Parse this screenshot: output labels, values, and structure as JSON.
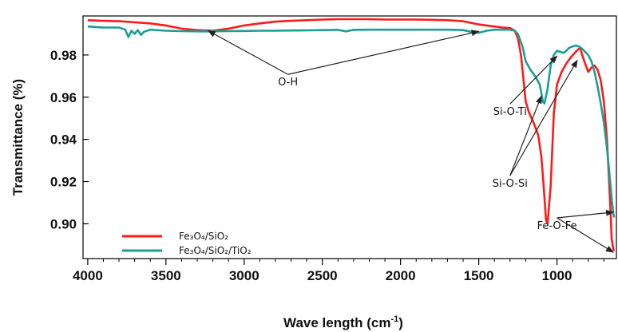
{
  "chart_data": {
    "type": "line",
    "title": "",
    "xlabel": "Wave length (cm",
    "xlabel_sup": "-1",
    "xlabel_suffix": ")",
    "ylabel": "Transmittance (%)",
    "xlim": [
      4030,
      620
    ],
    "ylim": [
      0.8835,
      0.9985
    ],
    "x_reversed": true,
    "x_ticks": [
      {
        "value": 4000,
        "label": "4000"
      },
      {
        "value": 3500,
        "label": "3500"
      },
      {
        "value": 3000,
        "label": "3000"
      },
      {
        "value": 2500,
        "label": "2500"
      },
      {
        "value": 2000,
        "label": "2000"
      },
      {
        "value": 1500,
        "label": "1500"
      },
      {
        "value": 1000,
        "label": "1000"
      }
    ],
    "y_ticks": [
      {
        "value": 0.98,
        "label": "0.98"
      },
      {
        "value": 0.96,
        "label": "0.96"
      },
      {
        "value": 0.94,
        "label": "0.94"
      },
      {
        "value": 0.92,
        "label": "0.92"
      },
      {
        "value": 0.9,
        "label": "0.90"
      }
    ],
    "grid": false,
    "legend_position": "bottom-left",
    "series": [
      {
        "name": "Fe₃O₄/SiO₂",
        "color": "#ff1a1a",
        "x": [
          4000,
          3900,
          3800,
          3700,
          3600,
          3500,
          3400,
          3300,
          3200,
          3100,
          3000,
          2900,
          2800,
          2700,
          2600,
          2500,
          2400,
          2300,
          2200,
          2100,
          2000,
          1900,
          1800,
          1700,
          1600,
          1500,
          1450,
          1400,
          1350,
          1300,
          1270,
          1250,
          1230,
          1200,
          1180,
          1150,
          1120,
          1100,
          1085,
          1070,
          1060,
          1040,
          1020,
          1000,
          970,
          940,
          910,
          880,
          860,
          850,
          830,
          800,
          780,
          760,
          740,
          720,
          700,
          680,
          660,
          650,
          640,
          635
        ],
        "y": [
          0.9965,
          0.9962,
          0.996,
          0.9955,
          0.995,
          0.994,
          0.9925,
          0.9918,
          0.9915,
          0.9925,
          0.994,
          0.995,
          0.9958,
          0.9962,
          0.9965,
          0.9968,
          0.997,
          0.997,
          0.997,
          0.9968,
          0.9968,
          0.9968,
          0.9967,
          0.9965,
          0.996,
          0.9945,
          0.994,
          0.9935,
          0.993,
          0.9928,
          0.9915,
          0.988,
          0.98,
          0.958,
          0.953,
          0.948,
          0.942,
          0.932,
          0.918,
          0.902,
          0.9,
          0.918,
          0.952,
          0.966,
          0.972,
          0.976,
          0.979,
          0.9815,
          0.983,
          0.983,
          0.978,
          0.972,
          0.974,
          0.975,
          0.973,
          0.968,
          0.958,
          0.94,
          0.91,
          0.893,
          0.888,
          0.887
        ]
      },
      {
        "name": "Fe₃O₄/SiO₂/TiO₂",
        "color": "#1a9e96",
        "x": [
          4000,
          3900,
          3800,
          3760,
          3740,
          3720,
          3700,
          3680,
          3660,
          3640,
          3600,
          3500,
          3400,
          3300,
          3200,
          3100,
          3000,
          2900,
          2800,
          2700,
          2600,
          2500,
          2400,
          2350,
          2300,
          2200,
          2100,
          2000,
          1900,
          1800,
          1700,
          1600,
          1550,
          1500,
          1450,
          1400,
          1300,
          1270,
          1250,
          1220,
          1200,
          1170,
          1140,
          1110,
          1090,
          1080,
          1060,
          1040,
          1020,
          1000,
          980,
          960,
          940,
          920,
          900,
          880,
          860,
          840,
          820,
          800,
          780,
          760,
          740,
          720,
          700,
          680,
          660,
          650,
          640,
          635
        ],
        "y": [
          0.9935,
          0.993,
          0.993,
          0.992,
          0.9885,
          0.9915,
          0.99,
          0.9918,
          0.9895,
          0.991,
          0.992,
          0.9915,
          0.9913,
          0.9912,
          0.9912,
          0.9913,
          0.9914,
          0.9915,
          0.9915,
          0.9916,
          0.9917,
          0.9918,
          0.9919,
          0.9912,
          0.9919,
          0.992,
          0.992,
          0.992,
          0.992,
          0.992,
          0.992,
          0.9918,
          0.991,
          0.9905,
          0.9915,
          0.992,
          0.992,
          0.9915,
          0.99,
          0.984,
          0.977,
          0.973,
          0.97,
          0.966,
          0.958,
          0.957,
          0.964,
          0.975,
          0.98,
          0.982,
          0.9815,
          0.981,
          0.982,
          0.9835,
          0.984,
          0.9845,
          0.984,
          0.983,
          0.9815,
          0.98,
          0.977,
          0.972,
          0.965,
          0.957,
          0.948,
          0.936,
          0.92,
          0.912,
          0.905,
          0.903
        ]
      }
    ],
    "annotations": [
      {
        "text": "O-H",
        "pos": [
          2720,
          0.9655
        ],
        "arrows_to": [
          [
            3230,
            0.9915
          ],
          [
            1500,
            0.9912
          ]
        ]
      },
      {
        "text": "Si-O-Ti",
        "pos": [
          1300,
          0.9515
        ],
        "arrows_to": [
          [
            1000,
            0.9795
          ]
        ]
      },
      {
        "text": "Si-O-Si",
        "pos": [
          1300,
          0.9175
        ],
        "arrows_to": [
          [
            1100,
            0.9605
          ],
          [
            870,
            0.9775
          ]
        ]
      },
      {
        "text": "Fe-O-Fe",
        "pos": [
          1000,
          0.8975
        ],
        "arrows_to": [
          [
            640,
            0.9055
          ],
          [
            640,
            0.8865
          ]
        ]
      }
    ]
  }
}
